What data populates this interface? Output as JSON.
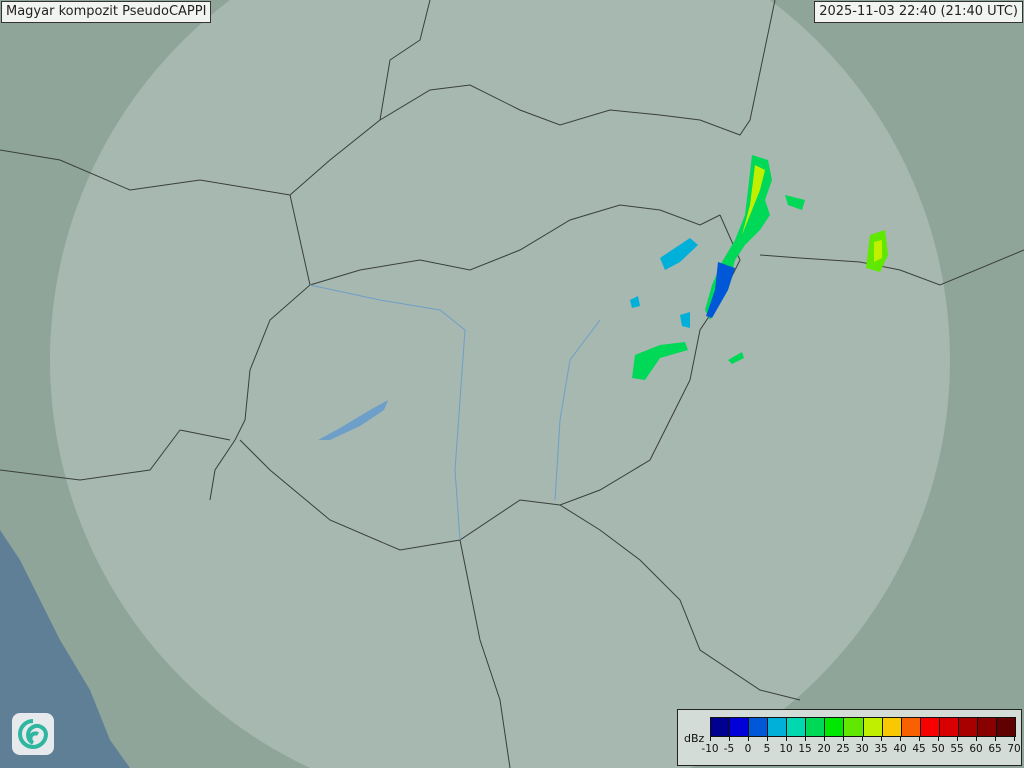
{
  "title": "Magyar kompozit  PseudoCAPPI",
  "timestamp": "2025-11-03 22:40 (21:40 UTC)",
  "legend": {
    "unit": "dBz",
    "tick_labels": [
      "-10",
      "-5",
      "0",
      "5",
      "10",
      "15",
      "20",
      "25",
      "30",
      "35",
      "40",
      "45",
      "50",
      "55",
      "60",
      "65",
      "70"
    ],
    "colors": [
      "#000090",
      "#0000d8",
      "#0058d8",
      "#00b0d8",
      "#00d8b0",
      "#00d858",
      "#00e800",
      "#60e800",
      "#c0f000",
      "#f8c800",
      "#f86000",
      "#f80000",
      "#d80000",
      "#a80000",
      "#880000",
      "#600000"
    ]
  },
  "logo": {
    "icon": "swirl-logo-icon"
  },
  "colors": {
    "land": "#8fa59a",
    "coverage": "#b9c9c1",
    "sea": "#5e7f96",
    "border": "#3a3f3c",
    "river": "#6e9fc8"
  }
}
